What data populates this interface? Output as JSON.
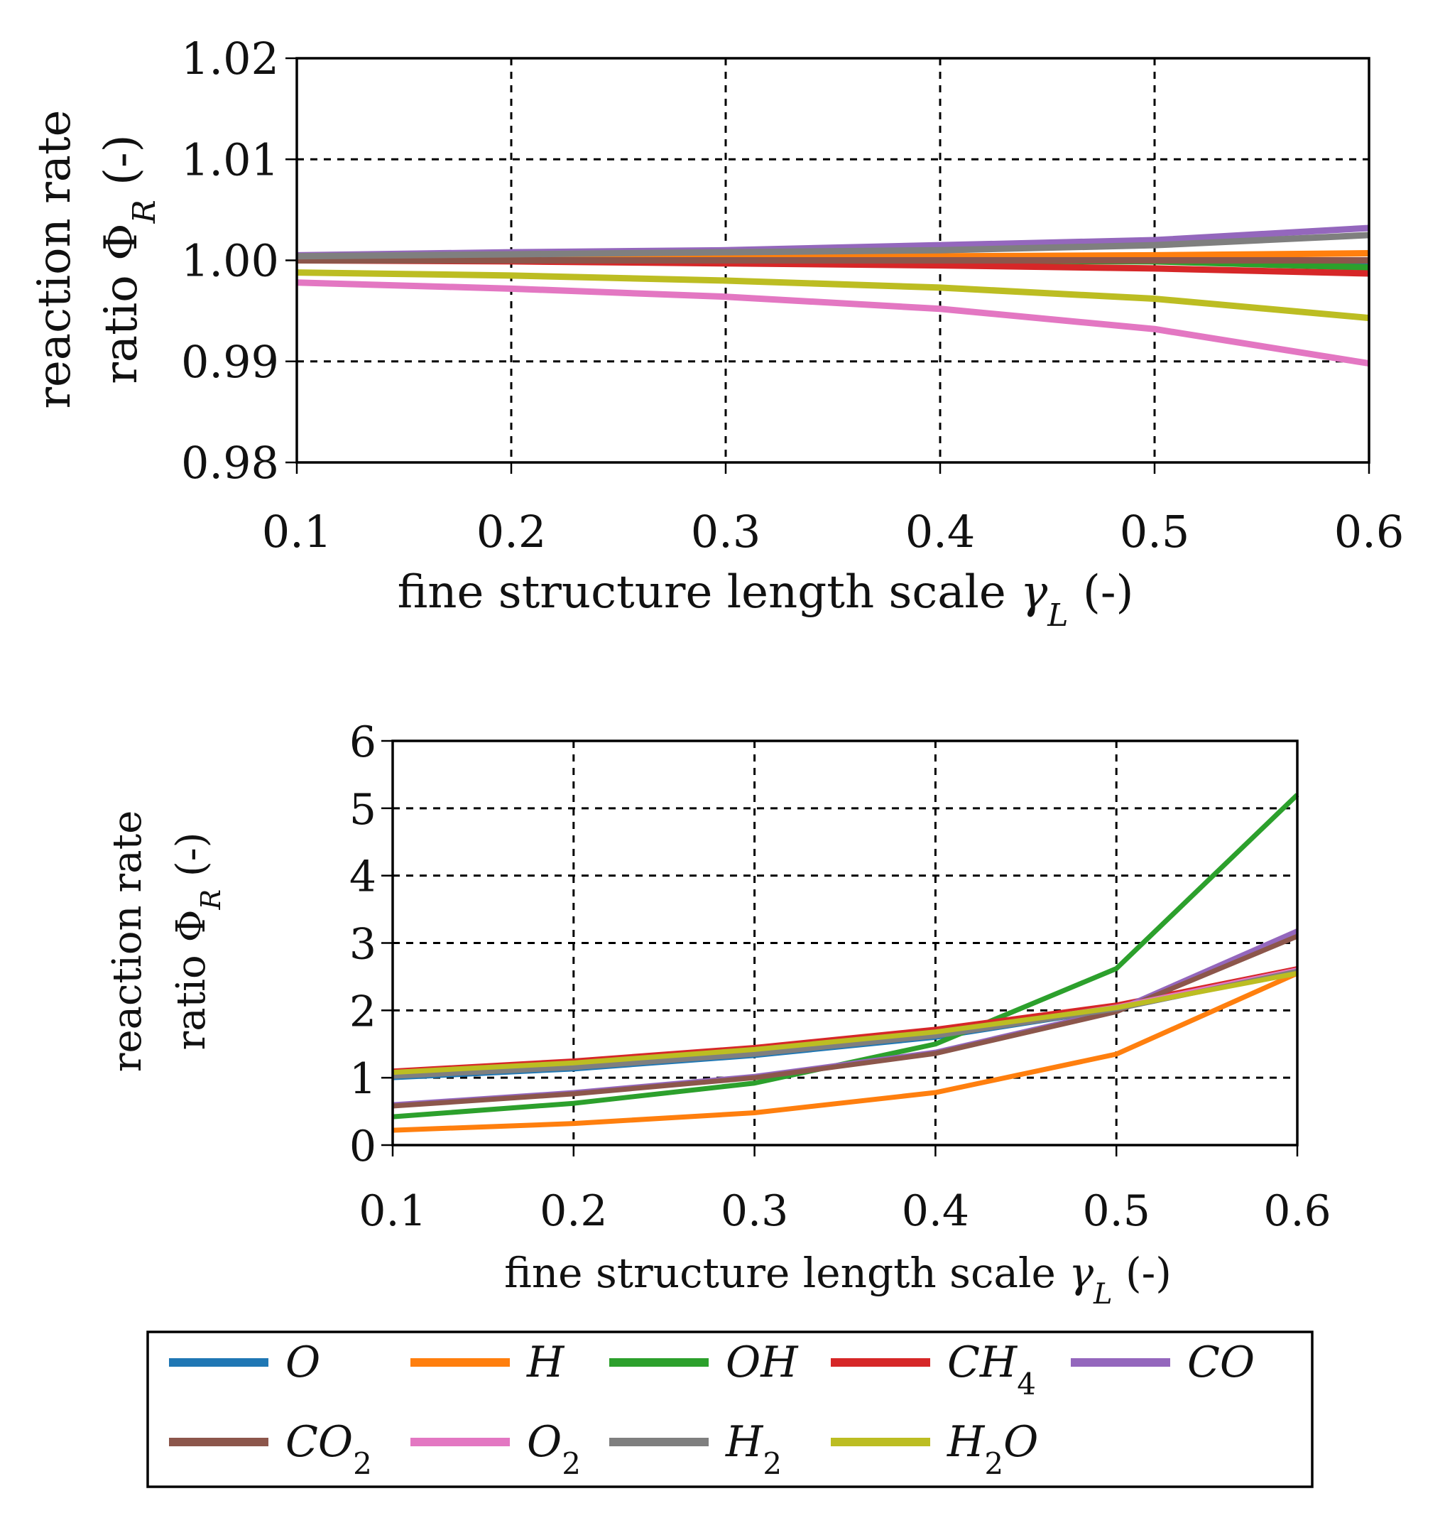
{
  "chart_data": [
    {
      "type": "line",
      "title": "",
      "xlabel": "fine structure length scale γL (-)",
      "xlabel_main": "fine structure length scale ",
      "xlabel_symbol": "γ",
      "xlabel_sub": "L",
      "xlabel_tail": " (-)",
      "ylabel_line1": "reaction rate",
      "ylabel_line2_main": "ratio Φ",
      "ylabel_line2_sub": "R",
      "ylabel_line2_tail": " (-)",
      "x": [
        0.1,
        0.2,
        0.3,
        0.4,
        0.5,
        0.6
      ],
      "x_tick_labels": [
        "0.1",
        "0.2",
        "0.3",
        "0.4",
        "0.5",
        "0.6"
      ],
      "y_ticks": [
        0.98,
        0.99,
        1.0,
        1.01,
        1.02
      ],
      "y_tick_labels": [
        "0.98",
        "0.99",
        "1.00",
        "1.01",
        "1.02"
      ],
      "xlim": [
        0.1,
        0.6
      ],
      "ylim": [
        0.98,
        1.02
      ],
      "grid": true,
      "series": [
        {
          "name": "O",
          "values": [
            1.0,
            1.0,
            1.0,
            1.0,
            1.0,
            0.9995
          ]
        },
        {
          "name": "H",
          "values": [
            1.0,
            1.0002,
            1.0003,
            1.0004,
            1.0005,
            1.0007
          ]
        },
        {
          "name": "OH",
          "values": [
            1.0,
            1.0,
            1.0,
            1.0,
            0.9999,
            0.9993
          ]
        },
        {
          "name": "CH4",
          "values": [
            1.0,
            0.9999,
            0.9997,
            0.9995,
            0.9992,
            0.9987
          ]
        },
        {
          "name": "CO",
          "values": [
            1.0005,
            1.0008,
            1.001,
            1.0015,
            1.002,
            1.0032
          ]
        },
        {
          "name": "CO2",
          "values": [
            1.0,
            1.0,
            1.0,
            1.0,
            1.0,
            1.0
          ]
        },
        {
          "name": "O2",
          "values": [
            0.9978,
            0.9972,
            0.9964,
            0.9952,
            0.9932,
            0.9898
          ]
        },
        {
          "name": "H2",
          "values": [
            1.0004,
            1.0006,
            1.0008,
            1.001,
            1.0015,
            1.0025
          ]
        },
        {
          "name": "H2O",
          "values": [
            0.9988,
            0.9985,
            0.998,
            0.9973,
            0.9962,
            0.9943
          ]
        }
      ]
    },
    {
      "type": "line",
      "title": "",
      "xlabel": "fine structure length scale γL (-)",
      "xlabel_main": "fine structure length scale ",
      "xlabel_symbol": "γ",
      "xlabel_sub": "L",
      "xlabel_tail": " (-)",
      "ylabel_line1": "reaction rate",
      "ylabel_line2_main": "ratio Φ",
      "ylabel_line2_sub": "R",
      "ylabel_line2_tail": " (-)",
      "x": [
        0.1,
        0.2,
        0.3,
        0.4,
        0.5,
        0.6
      ],
      "x_tick_labels": [
        "0.1",
        "0.2",
        "0.3",
        "0.4",
        "0.5",
        "0.6"
      ],
      "y_ticks": [
        0,
        1,
        2,
        3,
        4,
        5,
        6
      ],
      "y_tick_labels": [
        "0",
        "1",
        "2",
        "3",
        "4",
        "5",
        "6"
      ],
      "xlim": [
        0.1,
        0.6
      ],
      "ylim": [
        0,
        6
      ],
      "grid": true,
      "series": [
        {
          "name": "O",
          "values": [
            1.0,
            1.13,
            1.33,
            1.6,
            2.02,
            2.58
          ]
        },
        {
          "name": "H",
          "values": [
            0.22,
            0.32,
            0.48,
            0.78,
            1.35,
            2.55
          ]
        },
        {
          "name": "OH",
          "values": [
            0.42,
            0.62,
            0.92,
            1.5,
            2.62,
            5.2
          ]
        },
        {
          "name": "CH4",
          "values": [
            1.1,
            1.25,
            1.45,
            1.72,
            2.08,
            2.62
          ]
        },
        {
          "name": "CO",
          "values": [
            0.6,
            0.78,
            1.02,
            1.38,
            2.0,
            3.18
          ]
        },
        {
          "name": "CO2",
          "values": [
            0.58,
            0.76,
            1.0,
            1.36,
            1.98,
            3.1
          ]
        },
        {
          "name": "O2",
          "values": [
            1.05,
            1.2,
            1.4,
            1.65,
            2.05,
            2.6
          ]
        },
        {
          "name": "H2",
          "values": [
            1.02,
            1.15,
            1.35,
            1.62,
            2.02,
            2.58
          ]
        },
        {
          "name": "H2O",
          "values": [
            1.08,
            1.22,
            1.42,
            1.68,
            2.04,
            2.55
          ]
        }
      ]
    }
  ],
  "legend": {
    "items": [
      {
        "name": "O",
        "label": "O",
        "sub": "",
        "tail": "",
        "color": "#1f77b4"
      },
      {
        "name": "H",
        "label": "H",
        "sub": "",
        "tail": "",
        "color": "#ff7f0e"
      },
      {
        "name": "OH",
        "label": "OH",
        "sub": "",
        "tail": "",
        "color": "#2ca02c"
      },
      {
        "name": "CH4",
        "label": "CH",
        "sub": "4",
        "tail": "",
        "color": "#d62728"
      },
      {
        "name": "CO",
        "label": "CO",
        "sub": "",
        "tail": "",
        "color": "#9467bd"
      },
      {
        "name": "CO2",
        "label": "CO",
        "sub": "2",
        "tail": "",
        "color": "#8c564b"
      },
      {
        "name": "O2",
        "label": "O",
        "sub": "2",
        "tail": "",
        "color": "#e377c2"
      },
      {
        "name": "H2",
        "label": "H",
        "sub": "2",
        "tail": "",
        "color": "#7f7f7f"
      },
      {
        "name": "H2O",
        "label": "H",
        "sub": "2",
        "tail": "O",
        "color": "#bcbd22"
      }
    ]
  }
}
